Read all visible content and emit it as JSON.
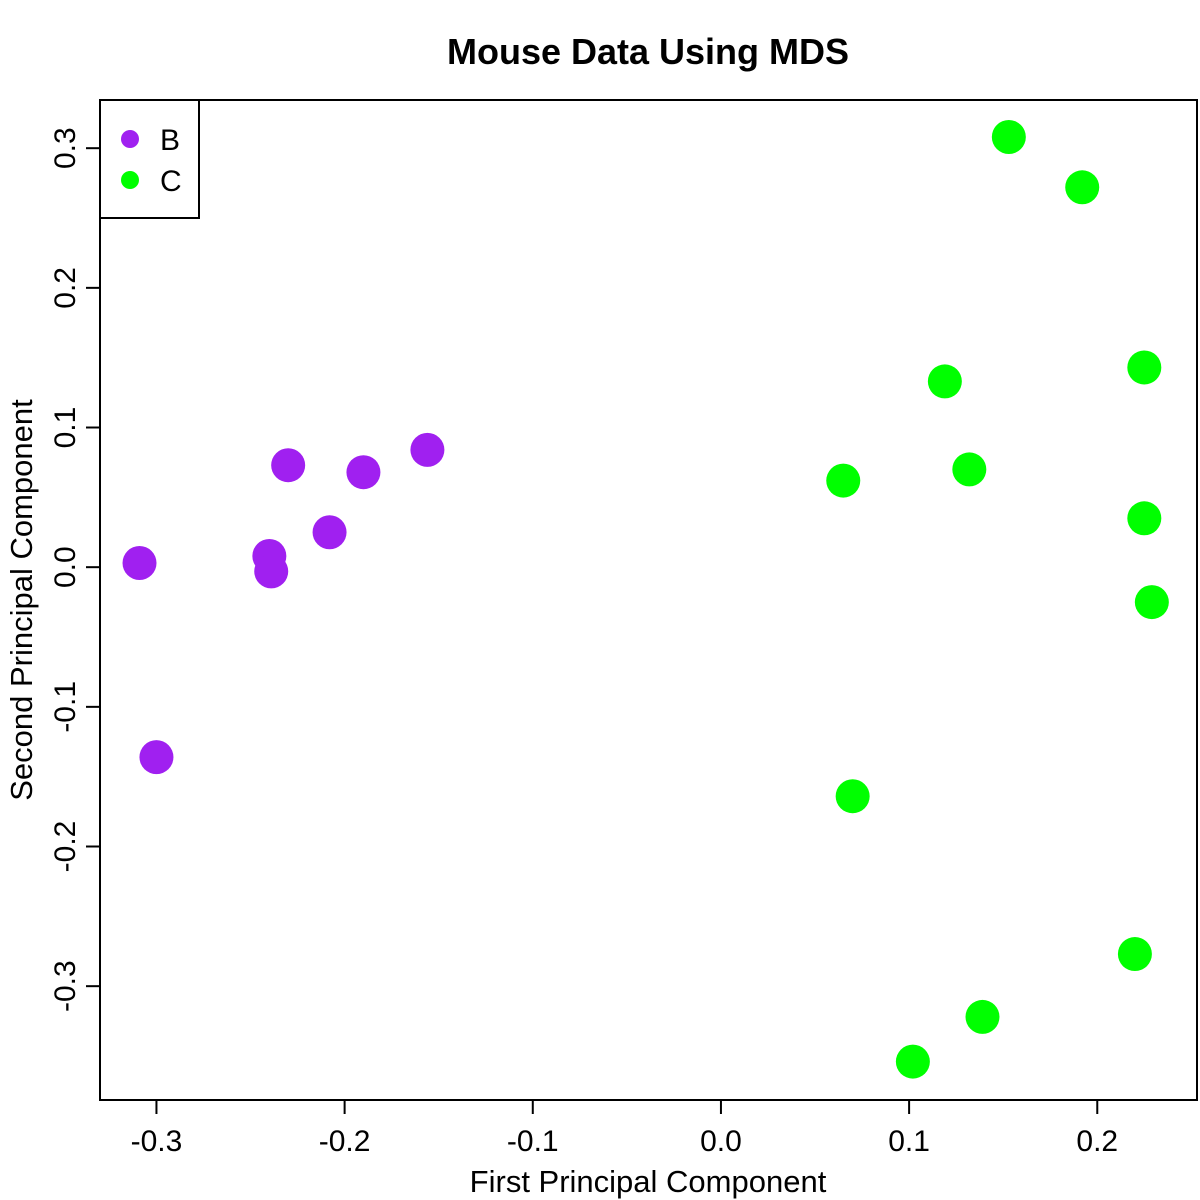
{
  "chart_data": {
    "type": "scatter",
    "title": "Mouse Data Using MDS",
    "xlabel": "First Principal Component",
    "ylabel": "Second Principal Component",
    "xlim": [
      -0.33,
      0.253
    ],
    "ylim": [
      -0.3815,
      0.3345
    ],
    "xticks": [
      -0.3,
      -0.2,
      -0.1,
      0.0,
      0.1,
      0.2
    ],
    "xtick_labels": [
      "-0.3",
      "-0.2",
      "-0.1",
      "0.0",
      "0.1",
      "0.2"
    ],
    "yticks": [
      -0.3,
      -0.2,
      -0.1,
      0.0,
      0.1,
      0.2,
      0.3
    ],
    "ytick_labels": [
      "-0.3",
      "-0.2",
      "-0.1",
      "0.0",
      "0.1",
      "0.2",
      "0.3"
    ],
    "grid": false,
    "legend_position": "top-left",
    "series": [
      {
        "name": "B",
        "color": "#a020f0",
        "points": [
          {
            "x": -0.309,
            "y": 0.003
          },
          {
            "x": -0.3,
            "y": -0.136
          },
          {
            "x": -0.24,
            "y": 0.008
          },
          {
            "x": -0.239,
            "y": -0.003
          },
          {
            "x": -0.23,
            "y": 0.073
          },
          {
            "x": -0.208,
            "y": 0.025
          },
          {
            "x": -0.19,
            "y": 0.068
          },
          {
            "x": -0.156,
            "y": 0.084
          }
        ]
      },
      {
        "name": "C",
        "color": "#00ff00",
        "points": [
          {
            "x": 0.065,
            "y": 0.062
          },
          {
            "x": 0.07,
            "y": -0.164
          },
          {
            "x": 0.102,
            "y": -0.354
          },
          {
            "x": 0.119,
            "y": 0.133
          },
          {
            "x": 0.132,
            "y": 0.07
          },
          {
            "x": 0.139,
            "y": -0.322
          },
          {
            "x": 0.153,
            "y": 0.308
          },
          {
            "x": 0.192,
            "y": 0.272
          },
          {
            "x": 0.22,
            "y": -0.277
          },
          {
            "x": 0.225,
            "y": 0.143
          },
          {
            "x": 0.225,
            "y": 0.035
          },
          {
            "x": 0.229,
            "y": -0.025
          }
        ]
      }
    ]
  }
}
